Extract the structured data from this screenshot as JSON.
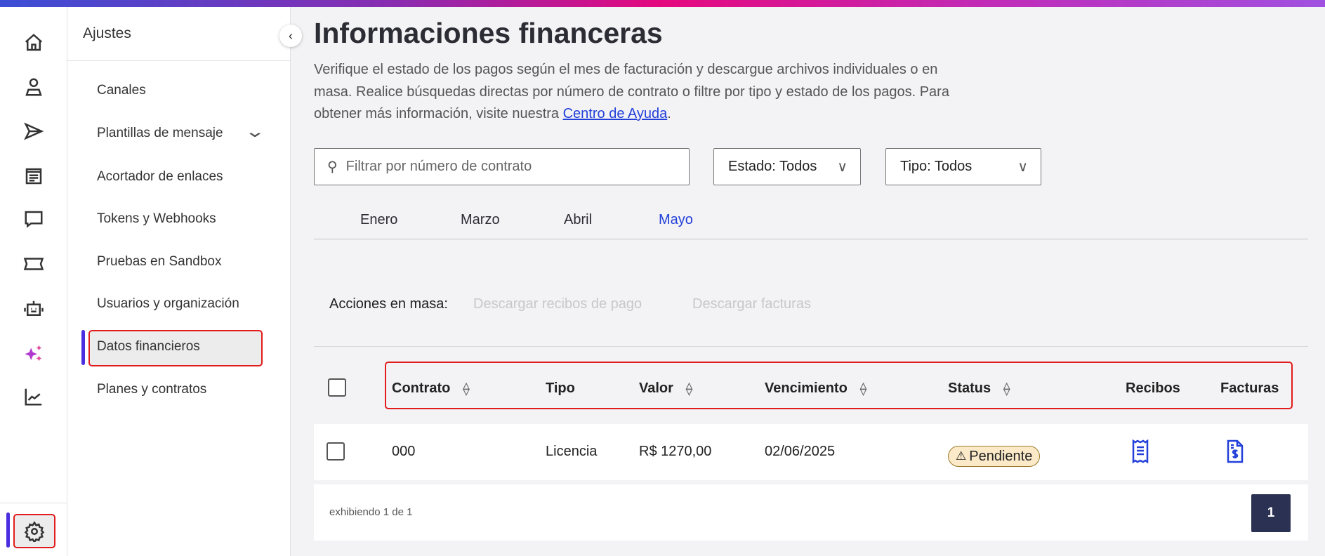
{
  "colors": {
    "accent": "#4a2fe0",
    "link": "#2340d9",
    "highlight": "#e21c1c",
    "pagination": "#2a3152",
    "badge_bg": "#fbe9c8"
  },
  "rail": {
    "icons": [
      "home-icon",
      "user-icon",
      "send-icon",
      "document-icon",
      "chat-icon",
      "ticket-icon",
      "bot-icon",
      "sparkles-icon",
      "chart-icon",
      "gear-icon"
    ]
  },
  "sidebar": {
    "title": "Ajustes",
    "items": [
      {
        "label": "Canales"
      },
      {
        "label": "Plantillas de mensaje"
      },
      {
        "label": "Acortador de enlaces"
      },
      {
        "label": "Tokens y Webhooks"
      },
      {
        "label": "Pruebas en Sandbox"
      },
      {
        "label": "Usuarios y organización"
      },
      {
        "label": "Datos financieros",
        "active": true
      },
      {
        "label": "Planes y contratos"
      }
    ]
  },
  "page": {
    "title": "Informaciones financeras",
    "description": "Verifique el estado de los pagos según el mes de facturación y descargue archivos individuales o en masa. Realice búsquedas directas por número de contrato o filtre por tipo y estado de los pagos. Para obtener más información, visite nuestra ",
    "help_link": "Centro de Ayuda",
    "desc_end": "."
  },
  "filters": {
    "search_placeholder": "Filtrar por número de contrato",
    "estado": "Estado: Todos",
    "tipo": "Tipo: Todos"
  },
  "tabs": [
    {
      "label": "Enero"
    },
    {
      "label": "Marzo"
    },
    {
      "label": "Abril"
    },
    {
      "label": "Mayo",
      "active": true
    }
  ],
  "bulk": {
    "label": "Acciones en masa:",
    "receipts": "Descargar recibos de pago",
    "invoices": "Descargar facturas"
  },
  "table": {
    "columns": [
      "Contrato",
      "Tipo",
      "Valor",
      "Vencimiento",
      "Status",
      "Recibos",
      "Facturas"
    ],
    "rows": [
      {
        "contrato": "000",
        "tipo": "Licencia",
        "valor": "R$ 1270,00",
        "vencimiento": "02/06/2025",
        "status": "Pendiente"
      }
    ]
  },
  "footer": {
    "showing": "exhibiendo 1 de 1",
    "page": "1"
  }
}
